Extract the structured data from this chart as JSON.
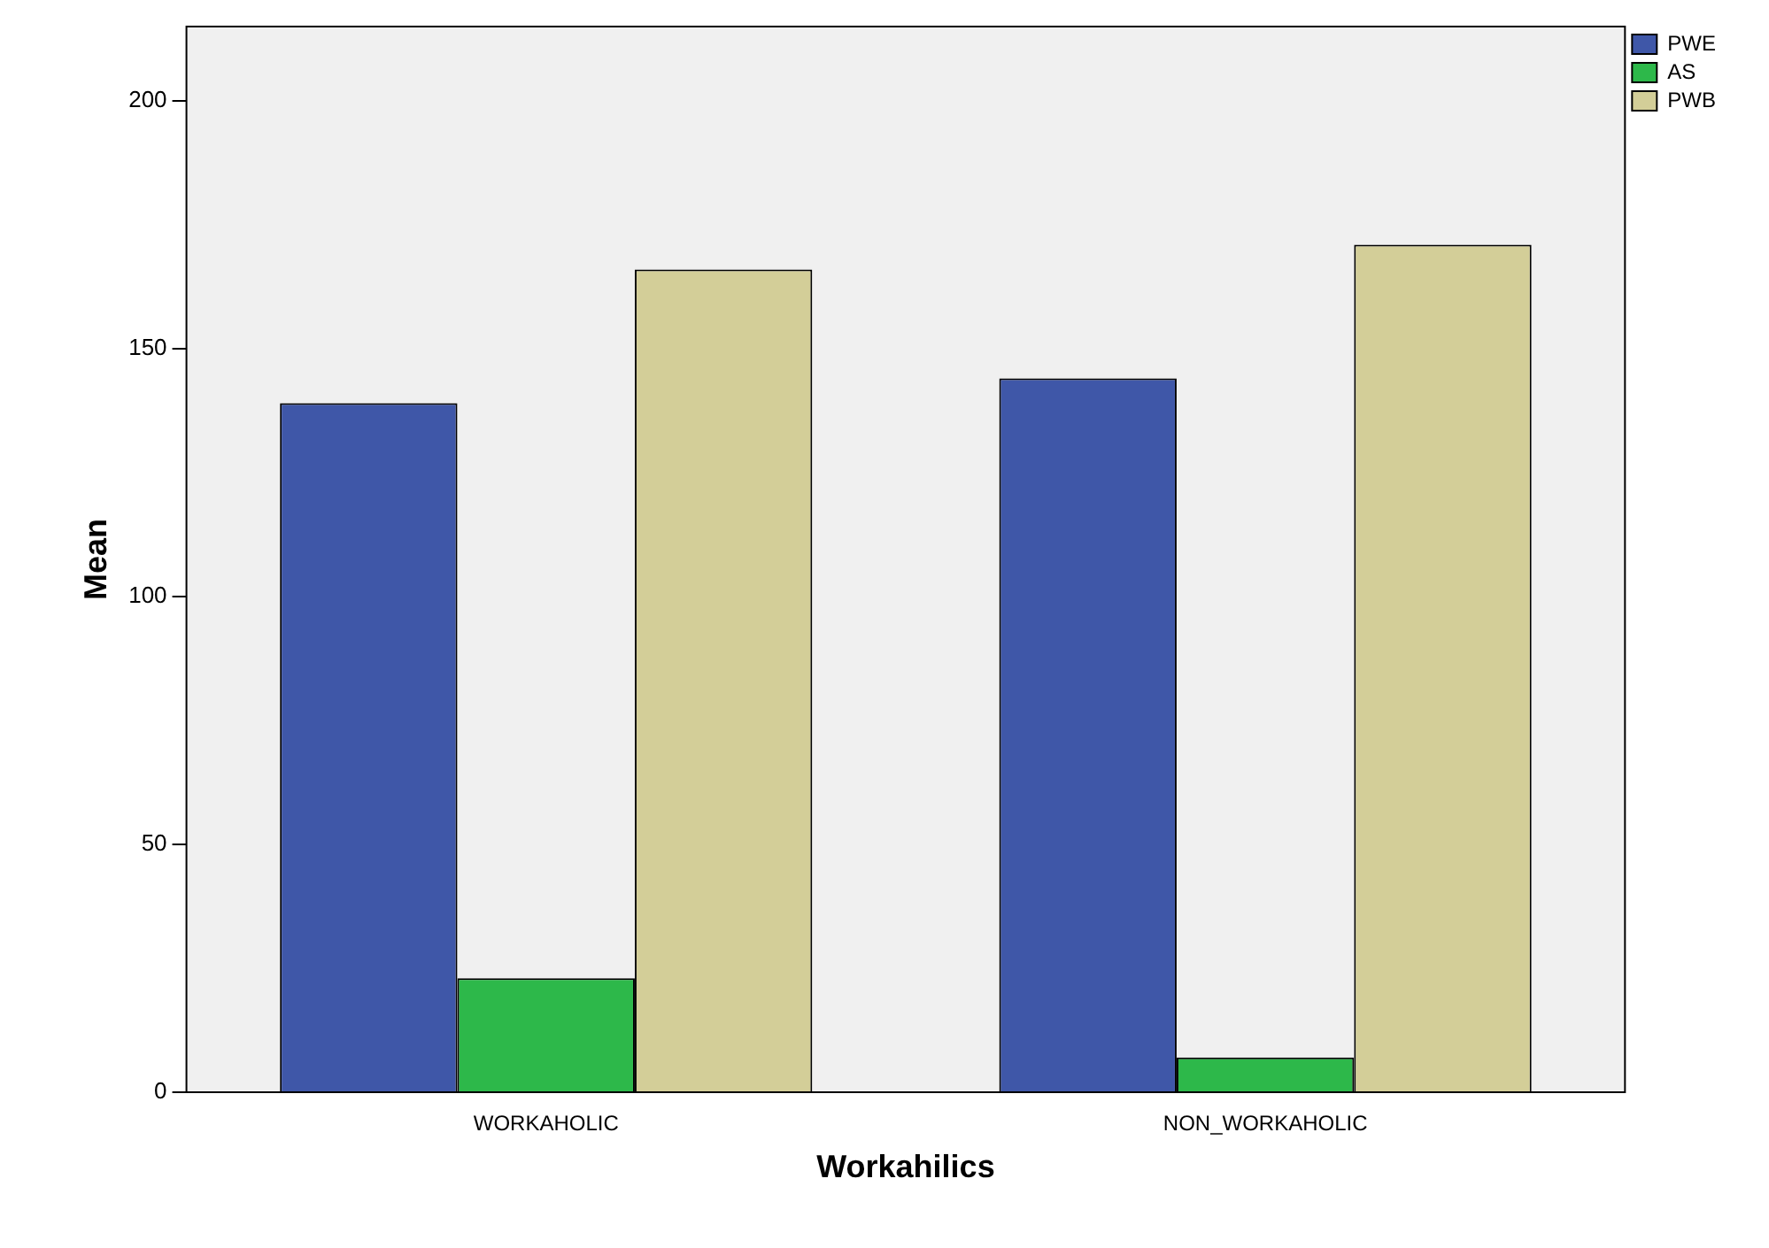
{
  "chart_data": {
    "type": "bar",
    "xlabel": "Workahilics",
    "ylabel": "Mean",
    "categories": [
      "WORKAHOLIC",
      "NON_WORKAHOLIC"
    ],
    "series": [
      {
        "name": "PWE",
        "color": "#3f57a8",
        "values": [
          139,
          144
        ]
      },
      {
        "name": "AS",
        "color": "#2db84a",
        "values": [
          23,
          7
        ]
      },
      {
        "name": "PWB",
        "color": "#d3ce98",
        "values": [
          166,
          171
        ]
      }
    ],
    "ylim": [
      0,
      215
    ],
    "yticks": [
      0,
      50,
      100,
      150,
      200
    ],
    "grid": false,
    "legend": "top right"
  }
}
